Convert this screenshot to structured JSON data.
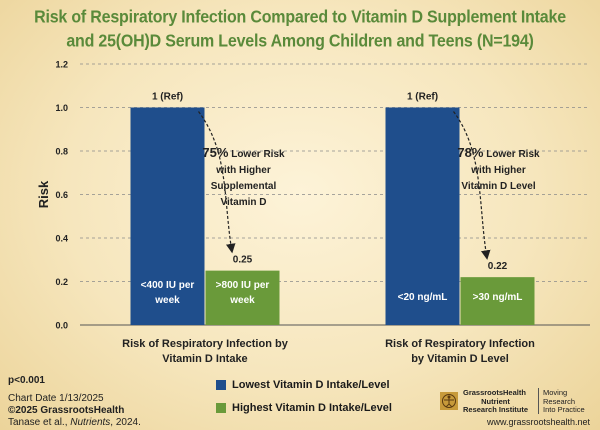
{
  "title_line1": "Risk of Respiratory Infection Compared to Vitamin D Supplement Intake",
  "title_line2": "and 25(OH)D Serum Levels Among Children and Teens (N=194)",
  "chart_data": {
    "type": "bar",
    "ylabel": "Risk",
    "ylim": [
      0,
      1.2
    ],
    "yticks": [
      "0.0",
      "0.2",
      "0.4",
      "0.6",
      "0.8",
      "1.0",
      "1.2"
    ],
    "groups": [
      {
        "label_line1": "Risk of Respiratory Infection by",
        "label_line2": "Vitamin D Intake",
        "bars": [
          {
            "label_line1": "<400 IU per",
            "label_line2": "week",
            "value": 1.0,
            "value_label": "1 (Ref)",
            "color": "#1f4e8c"
          },
          {
            "label_line1": ">800 IU per",
            "label_line2": "week",
            "value": 0.25,
            "value_label": "0.25",
            "color": "#6a9a3a"
          }
        ],
        "annotation": [
          "75% Lower Risk",
          "with Higher",
          "Supplemental",
          "Vitamin D"
        ],
        "annotation_pct": "75%",
        "annotation_rest": " Lower Risk"
      },
      {
        "label_line1": "Risk of Respiratory Infection",
        "label_line2": "by Vitamin D Level",
        "bars": [
          {
            "label_line1": "<20 ng/mL",
            "label_line2": "",
            "value": 1.0,
            "value_label": "1 (Ref)",
            "color": "#1f4e8c"
          },
          {
            "label_line1": ">30 ng/mL",
            "label_line2": "",
            "value": 0.22,
            "value_label": "0.22",
            "color": "#6a9a3a"
          }
        ],
        "annotation": [
          "78% Lower Risk",
          "with Higher",
          "Vitamin D Level"
        ],
        "annotation_pct": "78%",
        "annotation_rest": " Lower Risk"
      }
    ],
    "legend": [
      {
        "label": "Lowest Vitamin D Intake/Level",
        "color": "#1f4e8c"
      },
      {
        "label": "Highest Vitamin D Intake/Level",
        "color": "#6a9a3a"
      }
    ]
  },
  "footer": {
    "pvalue": "p<0.001",
    "chart_date": "Chart Date 1/13/2025",
    "copyright": "©2025 GrassrootsHealth",
    "citation_prefix": "Tanase et al., ",
    "citation_journal": "Nutrients",
    "citation_suffix": ", 2024."
  },
  "logo": {
    "line1": "GrassrootsHealth",
    "line2": "Nutrient",
    "line3": "Research Institute",
    "tag1": "Moving",
    "tag2": "Research",
    "tag3": "Into Practice",
    "url": "www.grassrootshealth.net"
  }
}
